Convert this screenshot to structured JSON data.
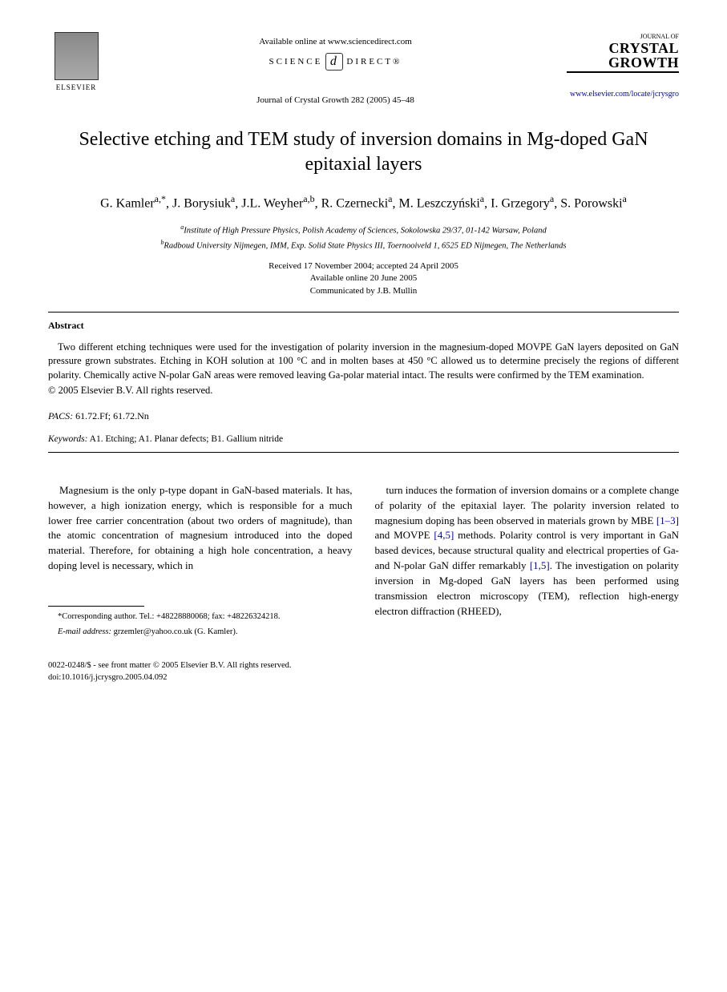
{
  "header": {
    "publisher": "ELSEVIER",
    "available_online": "Available online at www.sciencedirect.com",
    "science_direct_left": "SCIENCE",
    "science_direct_right": "DIRECT®",
    "sd_icon_glyph": "d",
    "journal_ref": "Journal of Crystal Growth 282 (2005) 45–48",
    "journal_logo_small": "JOURNAL OF",
    "journal_logo_line1": "CRYSTAL",
    "journal_logo_line2": "GROWTH",
    "journal_url": "www.elsevier.com/locate/jcrysgro"
  },
  "title": "Selective etching and TEM study of inversion domains in Mg-doped GaN epitaxial layers",
  "authors_html": "G. Kamler<sup>a,*</sup>, J. Borysiuk<sup>a</sup>, J.L. Weyher<sup>a,b</sup>, R. Czernecki<sup>a</sup>, M. Leszczyński<sup>a</sup>, I. Grzegory<sup>a</sup>, S. Porowski<sup>a</sup>",
  "affiliations": {
    "a": "Institute of High Pressure Physics, Polish Academy of Sciences, Sokolowska 29/37, 01-142 Warsaw, Poland",
    "b": "Radboud University Nijmegen, IMM, Exp. Solid State Physics III, Toernooiveld 1, 6525 ED Nijmegen, The Netherlands"
  },
  "dates": {
    "line1": "Received 17 November 2004; accepted 24 April 2005",
    "line2": "Available online 20 June 2005",
    "line3": "Communicated by J.B. Mullin"
  },
  "abstract": {
    "heading": "Abstract",
    "text": "Two different etching techniques were used for the investigation of polarity inversion in the magnesium-doped MOVPE GaN layers deposited on GaN pressure grown substrates. Etching in KOH solution at 100 °C and in molten bases at 450 °C allowed us to determine precisely the regions of different polarity. Chemically active N-polar GaN areas were removed leaving Ga-polar material intact. The results were confirmed by the TEM examination.",
    "copyright": "© 2005 Elsevier B.V. All rights reserved."
  },
  "pacs": {
    "label": "PACS:",
    "value": " 61.72.Ff; 61.72.Nn"
  },
  "keywords": {
    "label": "Keywords:",
    "value": " A1. Etching; A1. Planar defects; B1. Gallium nitride"
  },
  "body": {
    "col1": "Magnesium is the only p-type dopant in GaN-based materials. It has, however, a high ionization energy, which is responsible for a much lower free carrier concentration (about two orders of magnitude), than the atomic concentration of magnesium introduced into the doped material. Therefore, for obtaining a high hole concentration, a heavy doping level is necessary, which in",
    "col2_part1": "turn induces the formation of inversion domains or a complete change of polarity of the epitaxial layer. The polarity inversion related to magnesium doping has been observed in materials grown by MBE ",
    "ref1": "[1–3]",
    "col2_part2": " and MOVPE ",
    "ref2": "[4,5]",
    "col2_part3": " methods. Polarity control is very important in GaN based devices, because structural quality and electrical properties of Ga- and N-polar GaN differ remarkably ",
    "ref3": "[1,5]",
    "col2_part4": ". The investigation on polarity inversion in Mg-doped GaN layers has been performed using transmission electron microscopy (TEM), reflection high-energy electron diffraction (RHEED),"
  },
  "footnote": {
    "corresponding": "*Corresponding author. Tel.: +48228880068; fax: +48226324218.",
    "email_label": "E-mail address:",
    "email_value": " grzemler@yahoo.co.uk (G. Kamler)."
  },
  "footer": {
    "line1": "0022-0248/$ - see front matter © 2005 Elsevier B.V. All rights reserved.",
    "line2": "doi:10.1016/j.jcrysgro.2005.04.092"
  }
}
